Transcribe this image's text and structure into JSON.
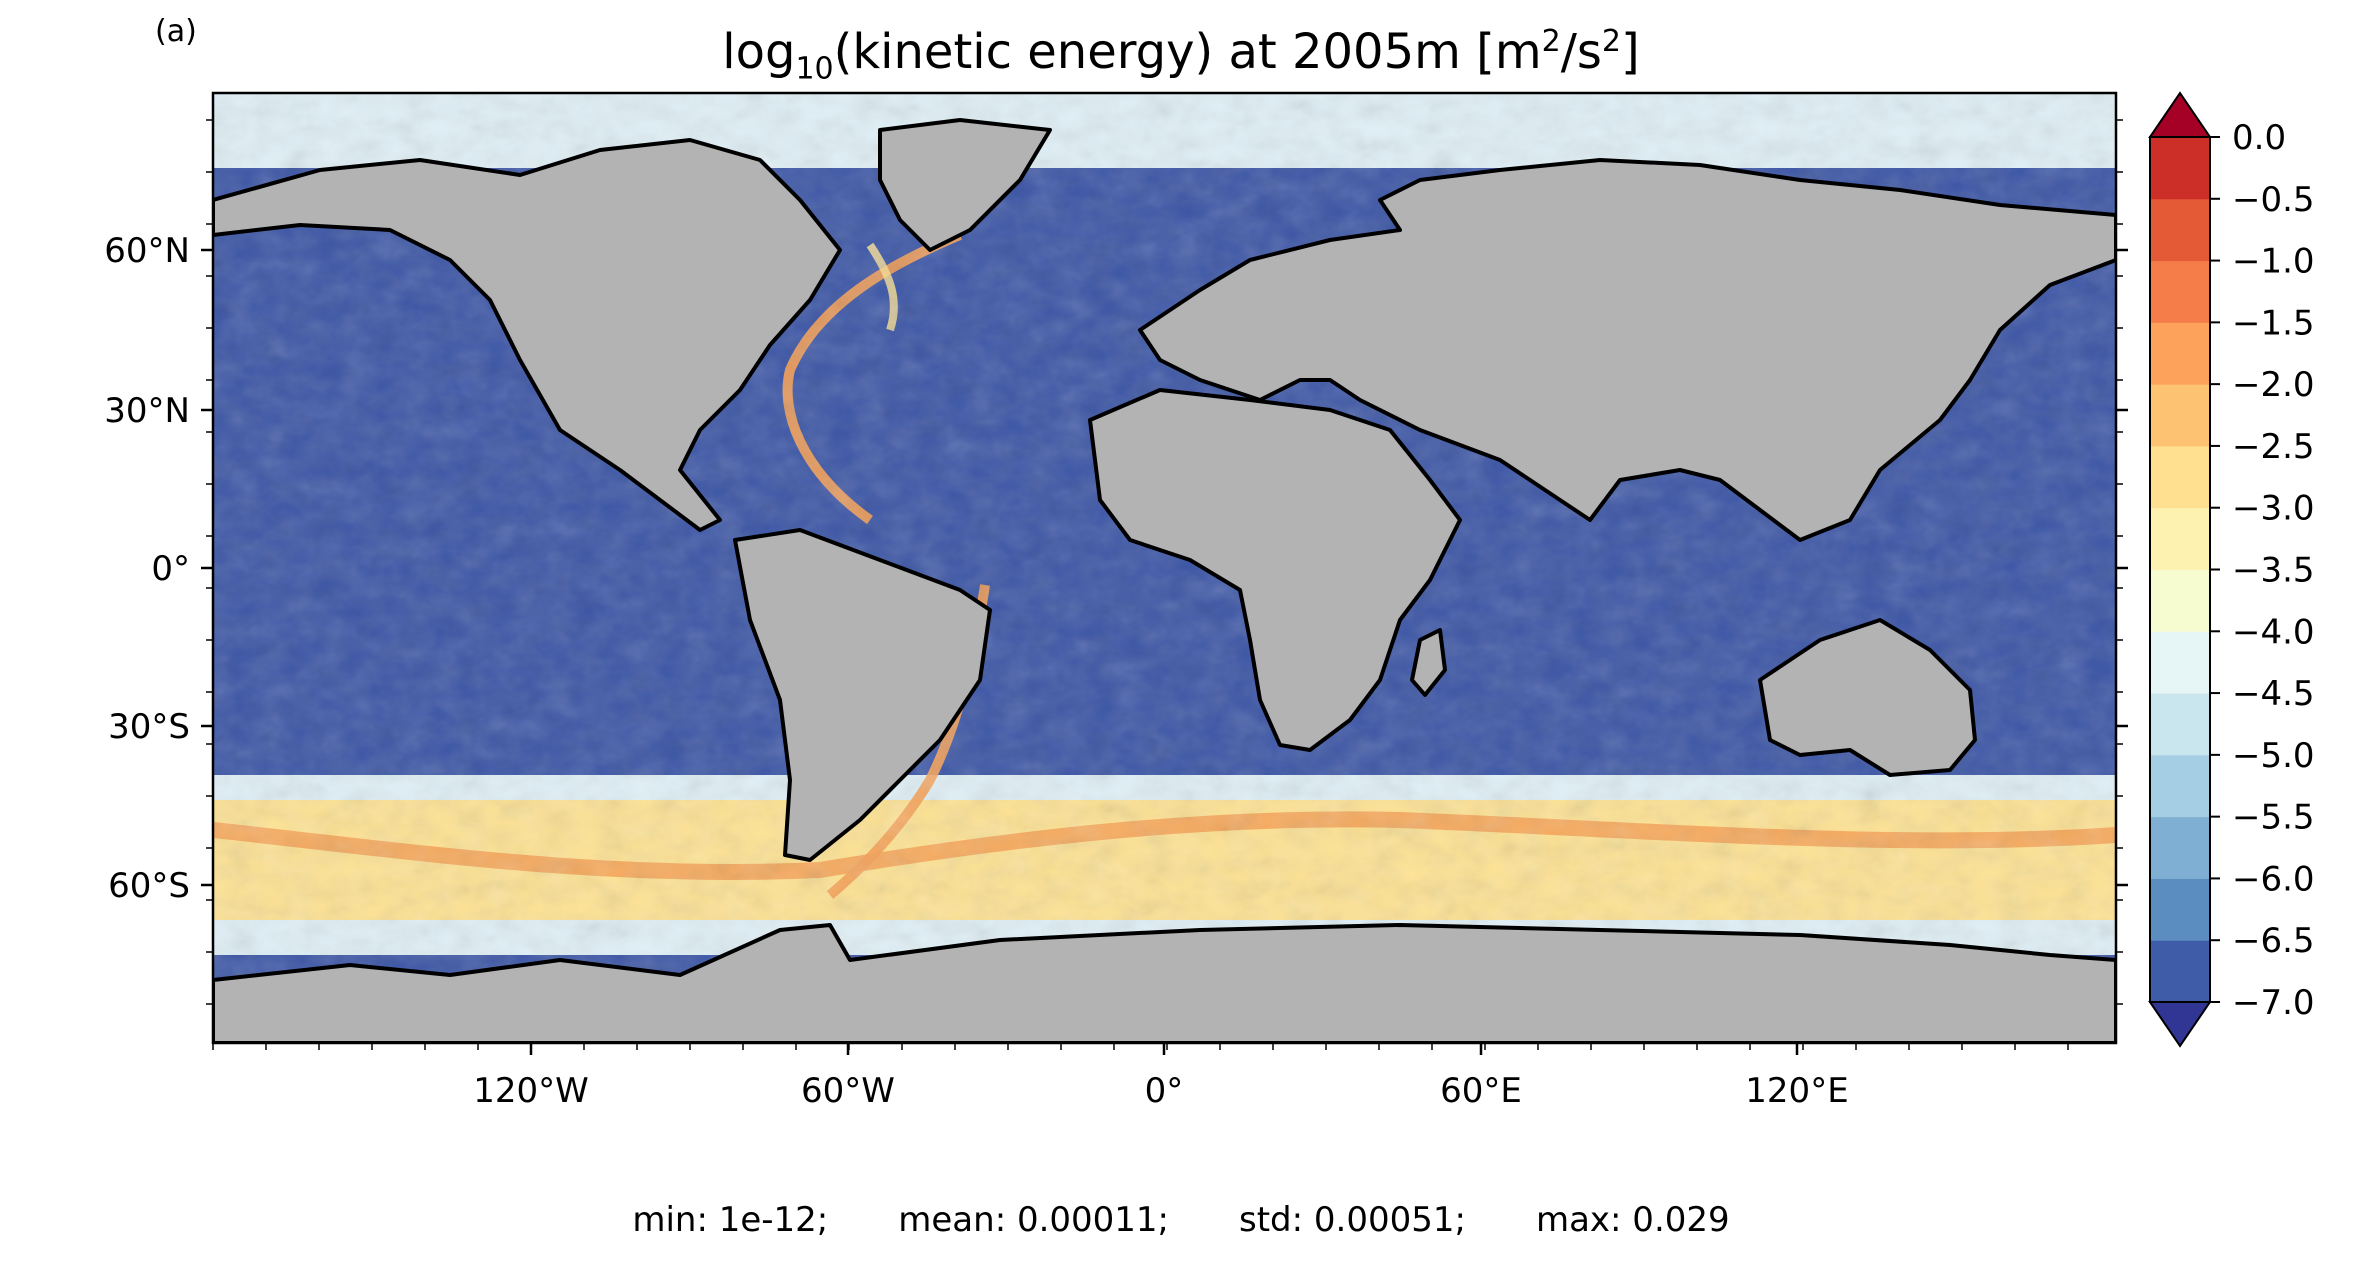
{
  "panel_label": "(a)",
  "title": {
    "prefix": "log",
    "sub": "10",
    "middle": "(kinetic energy) at 2005m [m",
    "sup1": "2",
    "slash": "/s",
    "sup2": "2",
    "suffix": "]"
  },
  "colors": {
    "land": "#b3b3b3",
    "coast": "#000000",
    "ocean_deep": "#3c56a6",
    "ocean_low": "#6a8fc6",
    "ocean_mid": "#a9cde3",
    "ocean_pale": "#dfeff6",
    "jet_yellow": "#fde293",
    "jet_orange": "#f5a055",
    "colorbar_bands": [
      "#313695",
      "#3e5ca8",
      "#5b8dc1",
      "#7fb0d4",
      "#a5cde3",
      "#c9e6ef",
      "#e6f5f5",
      "#f7fcd0",
      "#fef2b0",
      "#fee090",
      "#fdc373",
      "#fca25b",
      "#f47d4a",
      "#e45a36",
      "#cc2f28",
      "#a50026"
    ]
  },
  "axes": {
    "lat_ticks": [
      "60°N",
      "30°N",
      "0°",
      "30°S",
      "60°S"
    ],
    "lon_ticks": [
      "120°W",
      "60°W",
      "0°",
      "60°E",
      "120°E"
    ]
  },
  "colorbar": {
    "ticks": [
      "0.0",
      "−0.5",
      "−1.0",
      "−1.5",
      "−2.0",
      "−2.5",
      "−3.0",
      "−3.5",
      "−4.0",
      "−4.5",
      "−5.0",
      "−5.5",
      "−6.0",
      "−6.5",
      "−7.0"
    ],
    "vmin": -7.0,
    "vmax": 0.0,
    "extend": "both"
  },
  "stats": {
    "min": "min: 1e-12;",
    "mean": "mean: 0.00011;",
    "std": "std: 0.00051;",
    "max": "max: 0.029"
  }
}
